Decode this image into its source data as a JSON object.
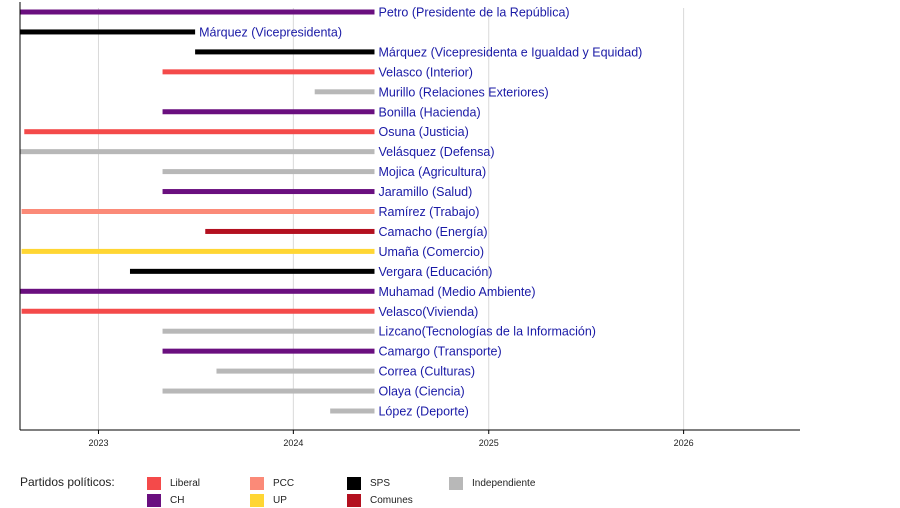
{
  "chart_data": {
    "type": "bar",
    "orientation": "horizontal-timeline",
    "xlim": [
      "2022-08-07",
      "2026-08-07"
    ],
    "x_ticks": [
      "2023",
      "2024",
      "2025",
      "2026"
    ],
    "grid": true,
    "rows": [
      {
        "label": "Petro (Presidente de la República)",
        "start": "2022-08-07",
        "end": "2024-06-01",
        "party": "CH"
      },
      {
        "label": "Márquez (Vicepresidenta)",
        "start": "2022-08-07",
        "end": "2023-07-01",
        "party": "SPS"
      },
      {
        "label": "Márquez (Vicepresidenta e Igualdad y Equidad)",
        "start": "2023-07-01",
        "end": "2024-06-01",
        "party": "SPS"
      },
      {
        "label": "Velasco (Interior)",
        "start": "2023-05-01",
        "end": "2024-06-01",
        "party": "Liberal"
      },
      {
        "label": "Murillo (Relaciones Exteriores)",
        "start": "2024-02-10",
        "end": "2024-06-01",
        "party": "Independiente"
      },
      {
        "label": "Bonilla (Hacienda)",
        "start": "2023-05-01",
        "end": "2024-06-01",
        "party": "CH"
      },
      {
        "label": "Osuna (Justicia)",
        "start": "2022-08-15",
        "end": "2024-06-01",
        "party": "Liberal"
      },
      {
        "label": "Velásquez (Defensa)",
        "start": "2022-08-07",
        "end": "2024-06-01",
        "party": "Independiente"
      },
      {
        "label": "Mojica (Agricultura)",
        "start": "2023-05-01",
        "end": "2024-06-01",
        "party": "Independiente"
      },
      {
        "label": "Jaramillo (Salud)",
        "start": "2023-05-01",
        "end": "2024-06-01",
        "party": "CH"
      },
      {
        "label": "Ramírez (Trabajo)",
        "start": "2022-08-10",
        "end": "2024-06-01",
        "party": "PCC"
      },
      {
        "label": "Camacho (Energía)",
        "start": "2023-07-20",
        "end": "2024-06-01",
        "party": "Comunes"
      },
      {
        "label": "Umaña (Comercio)",
        "start": "2022-08-10",
        "end": "2024-06-01",
        "party": "UP"
      },
      {
        "label": "Vergara (Educación)",
        "start": "2023-03-01",
        "end": "2024-06-01",
        "party": "SPS"
      },
      {
        "label": "Muhamad (Medio Ambiente)",
        "start": "2022-08-07",
        "end": "2024-06-01",
        "party": "CH"
      },
      {
        "label": "Velasco(Vivienda)",
        "start": "2022-08-10",
        "end": "2024-06-01",
        "party": "Liberal"
      },
      {
        "label": "Lizcano(Tecnologías de la Información)",
        "start": "2023-05-01",
        "end": "2024-06-01",
        "party": "Independiente"
      },
      {
        "label": "Camargo (Transporte)",
        "start": "2023-05-01",
        "end": "2024-06-01",
        "party": "CH"
      },
      {
        "label": "Correa (Culturas)",
        "start": "2023-08-10",
        "end": "2024-06-01",
        "party": "Independiente"
      },
      {
        "label": "Olaya (Ciencia)",
        "start": "2023-05-01",
        "end": "2024-06-01",
        "party": "Independiente"
      },
      {
        "label": "López (Deporte)",
        "start": "2024-03-10",
        "end": "2024-06-01",
        "party": "Independiente"
      }
    ],
    "legend": {
      "title": "Partidos políticos:",
      "placement": "bottom-left",
      "items": [
        {
          "label": "Liberal",
          "color": "#f44a4a"
        },
        {
          "label": "CH",
          "color": "#6a0f7f"
        },
        {
          "label": "PCC",
          "color": "#fb8a78"
        },
        {
          "label": "UP",
          "color": "#ffd633"
        },
        {
          "label": "SPS",
          "color": "#000000"
        },
        {
          "label": "Comunes",
          "color": "#b3101f"
        },
        {
          "label": "Independiente",
          "color": "#b8b8b8"
        }
      ]
    }
  }
}
